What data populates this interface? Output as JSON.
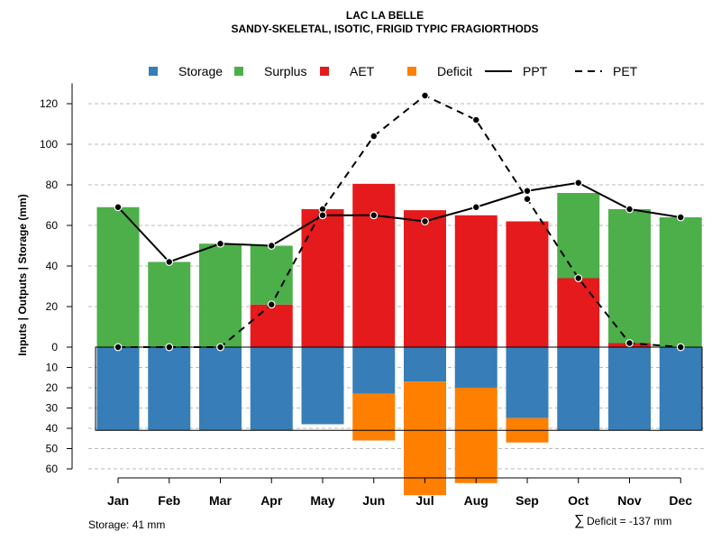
{
  "chart_data": {
    "type": "bar",
    "title": "LAC LA BELLE",
    "subtitle": "SANDY-SKELETAL, ISOTIC, FRIGID TYPIC FRAGIORTHODS",
    "ylabel": "Inputs | Outputs | Storage    (mm)",
    "categories": [
      "Jan",
      "Feb",
      "Mar",
      "Apr",
      "May",
      "Jun",
      "Jul",
      "Aug",
      "Sep",
      "Oct",
      "Nov",
      "Dec"
    ],
    "ylim": [
      -60,
      130
    ],
    "y_ticks_upper": [
      "0",
      "20",
      "40",
      "60",
      "80",
      "100",
      "120"
    ],
    "y_tick_values_upper": [
      0,
      20,
      40,
      60,
      80,
      100,
      120
    ],
    "y_ticks_lower": [
      "10",
      "20",
      "30",
      "40",
      "50",
      "60"
    ],
    "y_tick_values_lower": [
      -10,
      -20,
      -30,
      -40,
      -50,
      -60
    ],
    "storage_capacity": 41,
    "series": [
      {
        "name": "Storage",
        "color": "#377EB8",
        "values": [
          41,
          41,
          41,
          41,
          38,
          23,
          17,
          20,
          35,
          41,
          41,
          41
        ]
      },
      {
        "name": "Surplus",
        "color": "#4DAF4A",
        "values": [
          69,
          42,
          51,
          29,
          0,
          0,
          0,
          0,
          0,
          42,
          66,
          64
        ]
      },
      {
        "name": "AET",
        "color": "#E41A1C",
        "values": [
          0,
          0,
          0,
          21,
          68,
          80.5,
          67.5,
          65,
          62,
          34,
          2,
          0
        ]
      },
      {
        "name": "Deficit",
        "color": "#FF7F00",
        "values": [
          0,
          0,
          0,
          0,
          0,
          23,
          56,
          47,
          12,
          0,
          0,
          0
        ]
      },
      {
        "name": "PPT",
        "color": "#000000",
        "style": "solid",
        "values": [
          69,
          42,
          51,
          50,
          65,
          65,
          62,
          69,
          77,
          81,
          68,
          64
        ]
      },
      {
        "name": "PET",
        "color": "#000000",
        "style": "dashed",
        "values": [
          0,
          0,
          0,
          21,
          68,
          104,
          124,
          112,
          73,
          34,
          2,
          0
        ]
      }
    ],
    "legend": {
      "position": "top",
      "entries": [
        "Storage",
        "Surplus",
        "AET",
        "Deficit",
        "PPT",
        "PET"
      ]
    },
    "footnotes": {
      "storage": "Storage: 41 mm",
      "deficit_symbol": "∑",
      "deficit": "Deficit = -137 mm"
    }
  }
}
